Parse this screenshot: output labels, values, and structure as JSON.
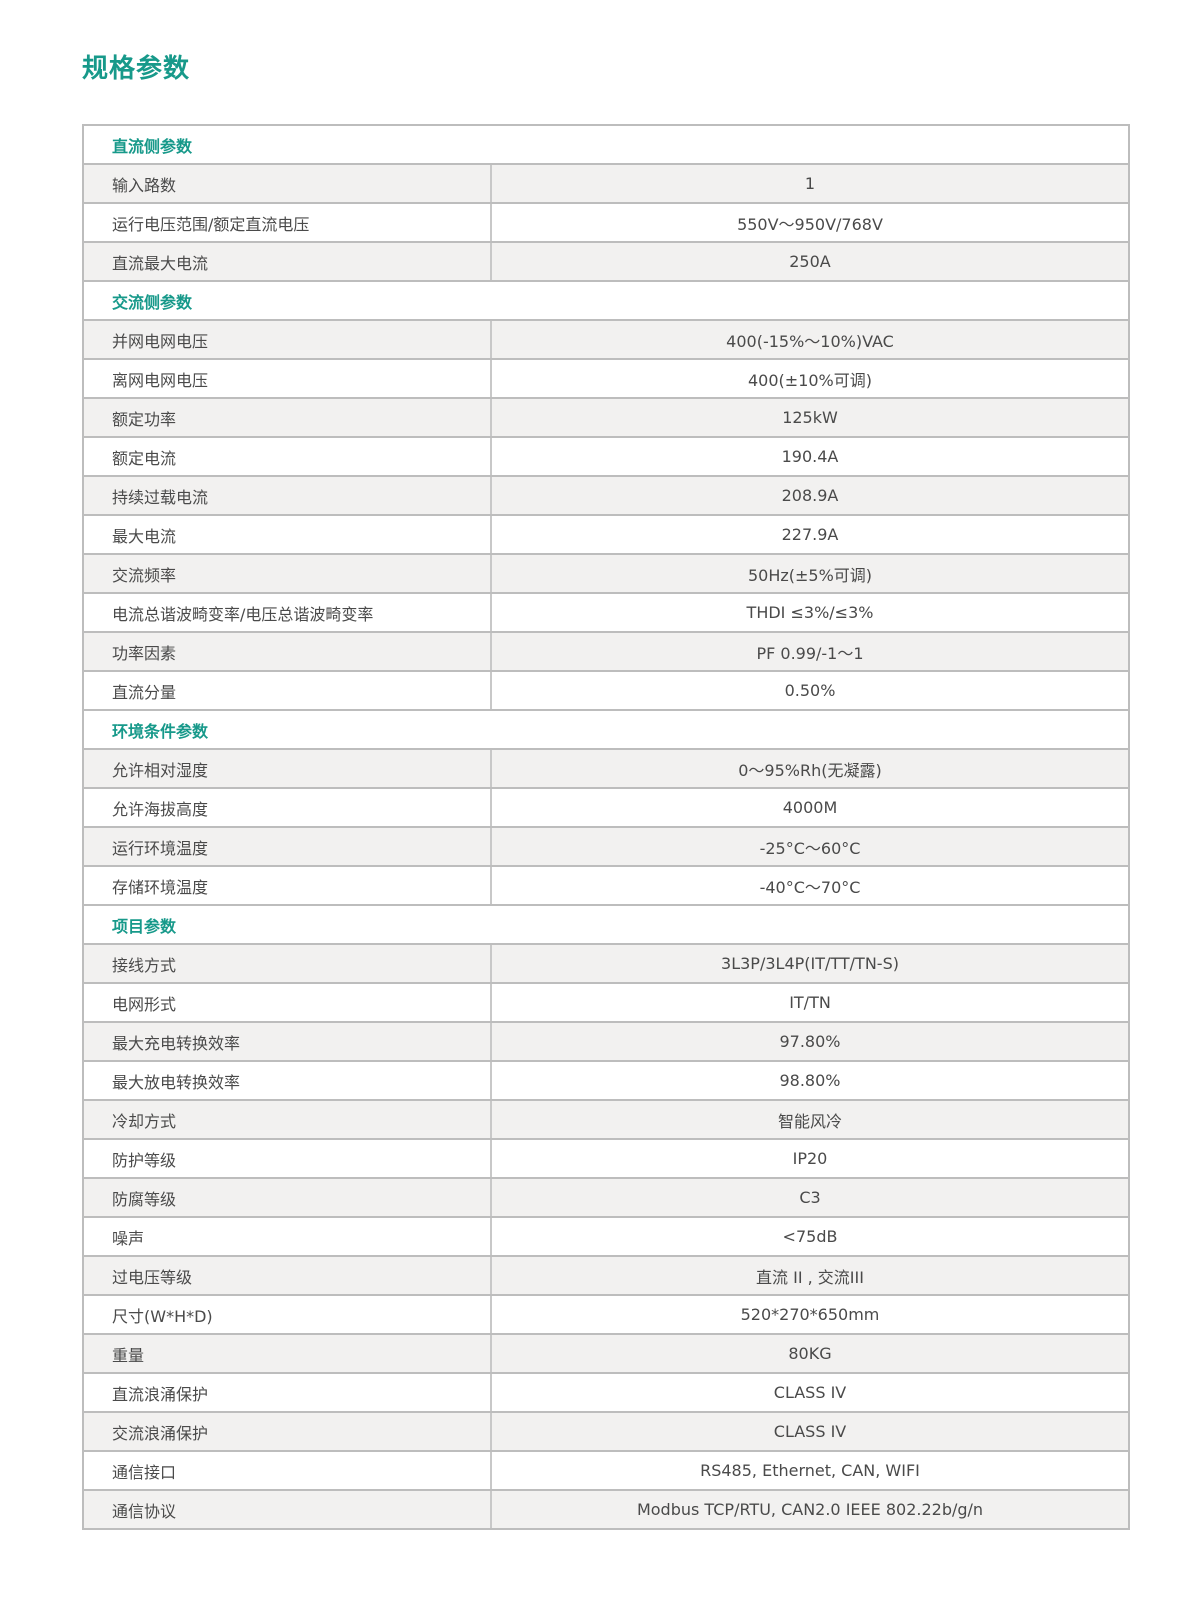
{
  "page_title": "规格参数",
  "accent_color": "#17998a",
  "sections": [
    {
      "title": "直流侧参数",
      "rows": [
        {
          "label": "输入路数",
          "value": "1"
        },
        {
          "label": "运行电压范围/额定直流电压",
          "value": "550V～950V/768V"
        },
        {
          "label": "直流最大电流",
          "value": "250A"
        }
      ]
    },
    {
      "title": "交流侧参数",
      "rows": [
        {
          "label": "并网电网电压",
          "value": "400(-15%～10%)VAC"
        },
        {
          "label": "离网电网电压",
          "value": "400(±10%可调)"
        },
        {
          "label": "额定功率",
          "value": "125kW"
        },
        {
          "label": "额定电流",
          "value": "190.4A"
        },
        {
          "label": "持续过载电流",
          "value": "208.9A"
        },
        {
          "label": "最大电流",
          "value": "227.9A"
        },
        {
          "label": "交流频率",
          "value": "50Hz(±5%可调)"
        },
        {
          "label": "电流总谐波畸变率/电压总谐波畸变率",
          "value": "THDI ≤3%/≤3%"
        },
        {
          "label": "功率因素",
          "value": "PF 0.99/-1～1"
        },
        {
          "label": "直流分量",
          "value": "0.50%"
        }
      ]
    },
    {
      "title": "环境条件参数",
      "rows": [
        {
          "label": "允许相对湿度",
          "value": "0～95%Rh(无凝露)"
        },
        {
          "label": "允许海拔高度",
          "value": "4000M"
        },
        {
          "label": "运行环境温度",
          "value": "-25°C～60°C"
        },
        {
          "label": "存储环境温度",
          "value": "-40°C～70°C"
        }
      ]
    },
    {
      "title": "项目参数",
      "rows": [
        {
          "label": "接线方式",
          "value": "3L3P/3L4P(IT/TT/TN-S)"
        },
        {
          "label": "电网形式",
          "value": "IT/TN"
        },
        {
          "label": "最大充电转换效率",
          "value": "97.80%"
        },
        {
          "label": "最大放电转换效率",
          "value": "98.80%"
        },
        {
          "label": "冷却方式",
          "value": "智能风冷"
        },
        {
          "label": "防护等级",
          "value": "IP20"
        },
        {
          "label": "防腐等级",
          "value": "C3"
        },
        {
          "label": "噪声",
          "value": "<75dB"
        },
        {
          "label": "过电压等级",
          "value": "直流 II , 交流III"
        },
        {
          "label": "尺寸(W*H*D)",
          "value": "520*270*650mm"
        },
        {
          "label": "重量",
          "value": "80KG"
        },
        {
          "label": "直流浪涌保护",
          "value": "CLASS IV"
        },
        {
          "label": "交流浪涌保护",
          "value": "CLASS IV"
        },
        {
          "label": "通信接口",
          "value": "RS485, Ethernet, CAN, WIFI"
        },
        {
          "label": "通信协议",
          "value": "Modbus TCP/RTU, CAN2.0  IEEE 802.22b/g/n"
        }
      ]
    }
  ]
}
